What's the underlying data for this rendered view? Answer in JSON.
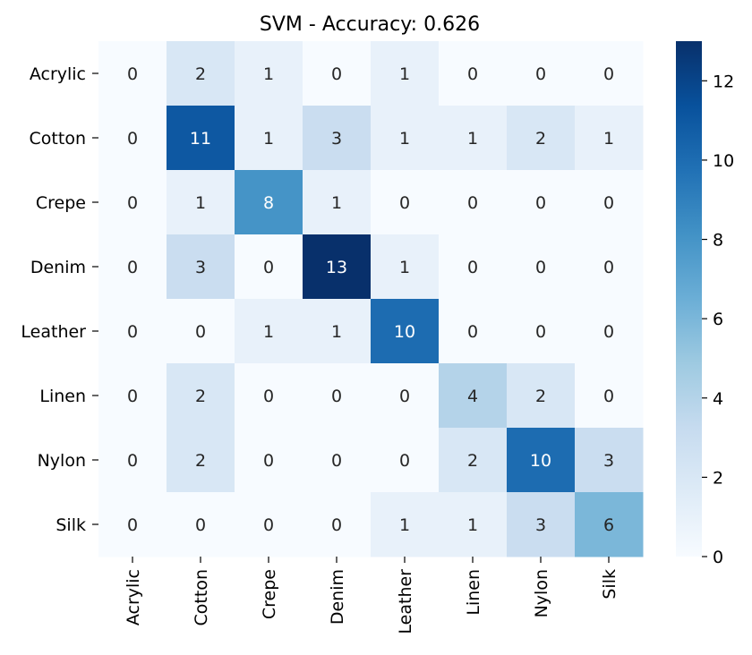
{
  "chart_data": {
    "type": "heatmap",
    "title": "SVM - Accuracy: 0.626",
    "xlabel": "",
    "ylabel": "",
    "row_labels": [
      "Acrylic",
      "Cotton",
      "Crepe",
      "Denim",
      "Leather",
      "Linen",
      "Nylon",
      "Silk"
    ],
    "col_labels": [
      "Acrylic",
      "Cotton",
      "Crepe",
      "Denim",
      "Leather",
      "Linen",
      "Nylon",
      "Silk"
    ],
    "values": [
      [
        0,
        2,
        1,
        0,
        1,
        0,
        0,
        0
      ],
      [
        0,
        11,
        1,
        3,
        1,
        1,
        2,
        1
      ],
      [
        0,
        1,
        8,
        1,
        0,
        0,
        0,
        0
      ],
      [
        0,
        3,
        0,
        13,
        1,
        0,
        0,
        0
      ],
      [
        0,
        0,
        1,
        1,
        10,
        0,
        0,
        0
      ],
      [
        0,
        2,
        0,
        0,
        0,
        4,
        2,
        0
      ],
      [
        0,
        2,
        0,
        0,
        0,
        2,
        10,
        3
      ],
      [
        0,
        0,
        0,
        0,
        1,
        1,
        3,
        6
      ]
    ],
    "colorbar": {
      "min": 0,
      "max": 13,
      "ticks": [
        0,
        2,
        4,
        6,
        8,
        10,
        12
      ],
      "colormap": "Blues"
    }
  }
}
